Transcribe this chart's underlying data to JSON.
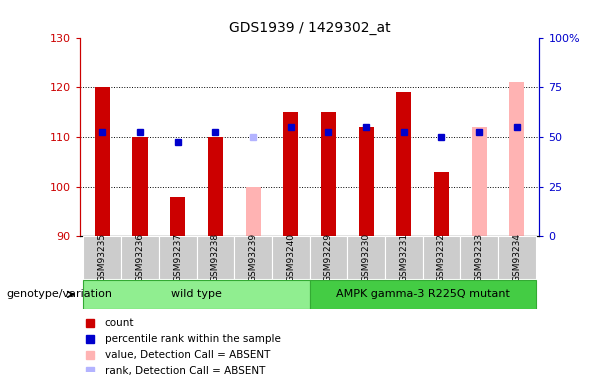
{
  "title": "GDS1939 / 1429302_at",
  "samples": [
    "GSM93235",
    "GSM93236",
    "GSM93237",
    "GSM93238",
    "GSM93239",
    "GSM93240",
    "GSM93229",
    "GSM93230",
    "GSM93231",
    "GSM93232",
    "GSM93233",
    "GSM93234"
  ],
  "bar_heights": [
    120,
    110,
    98,
    110,
    100,
    115,
    115,
    112,
    119,
    103,
    112,
    121
  ],
  "bar_colors": [
    "#cc0000",
    "#cc0000",
    "#cc0000",
    "#cc0000",
    "#ffb3b3",
    "#cc0000",
    "#cc0000",
    "#cc0000",
    "#cc0000",
    "#cc0000",
    "#ffb3b3",
    "#ffb3b3"
  ],
  "dot_values": [
    111,
    111,
    109,
    111,
    110,
    112,
    111,
    112,
    111,
    110,
    111,
    112
  ],
  "dot_colors": [
    "#0000cc",
    "#0000cc",
    "#0000cc",
    "#0000cc",
    "#b3b3ff",
    "#0000cc",
    "#0000cc",
    "#0000cc",
    "#0000cc",
    "#0000cc",
    "#0000cc",
    "#0000cc"
  ],
  "ymin": 90,
  "ymax": 130,
  "yticks_left": [
    90,
    100,
    110,
    120,
    130
  ],
  "yticks_right": [
    0,
    25,
    50,
    75,
    100
  ],
  "yticks_right_labels": [
    "0",
    "25",
    "50",
    "75",
    "100%"
  ],
  "grid_lines": [
    100,
    110,
    120
  ],
  "wild_type_label": "wild type",
  "mutant_label": "AMPK gamma-3 R225Q mutant",
  "genotype_label": "genotype/variation",
  "legend_items": [
    {
      "label": "count",
      "color": "#cc0000"
    },
    {
      "label": "percentile rank within the sample",
      "color": "#0000cc"
    },
    {
      "label": "value, Detection Call = ABSENT",
      "color": "#ffb3b3"
    },
    {
      "label": "rank, Detection Call = ABSENT",
      "color": "#b3b3ff"
    }
  ],
  "bar_width": 0.4,
  "baseline": 90,
  "left_axis_color": "#cc0000",
  "right_axis_color": "#0000cc",
  "wt_bg": "#90ee90",
  "mut_bg": "#44cc44"
}
